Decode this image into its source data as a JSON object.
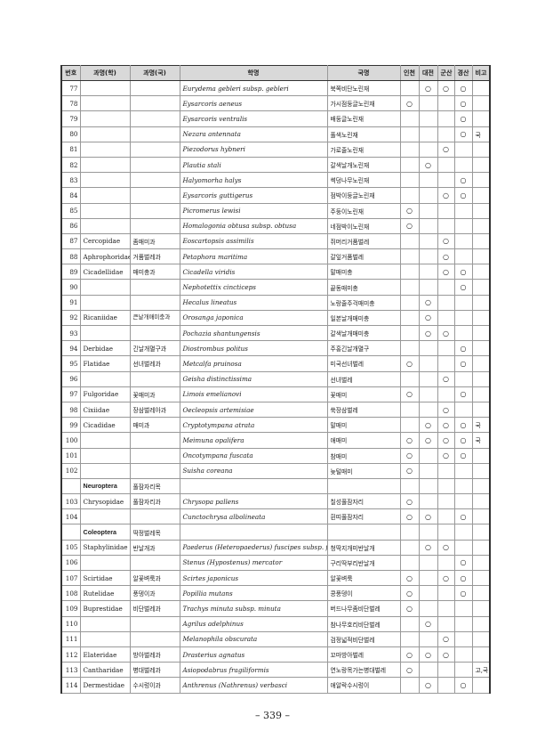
{
  "headers": [
    "번호",
    "과명(학)",
    "과명(국)",
    "학명",
    "국명",
    "인천",
    "대전",
    "군산",
    "경산",
    "비고"
  ],
  "rows": [
    {
      "no": "77",
      "fam": "",
      "famk": "",
      "sci": "Eurydema gebleri subsp. gebleri",
      "kor": "북쪽비단노린재",
      "m": [
        "",
        "○",
        "○",
        "○"
      ],
      "note": ""
    },
    {
      "no": "78",
      "fam": "",
      "famk": "",
      "sci": "Eysarcoris aeneus",
      "kor": "가시점둥글노린재",
      "m": [
        "○",
        "",
        "",
        "○"
      ],
      "note": ""
    },
    {
      "no": "79",
      "fam": "",
      "famk": "",
      "sci": "Eysarcoris ventralis",
      "kor": "배둥글노린재",
      "m": [
        "",
        "",
        "",
        "○"
      ],
      "note": ""
    },
    {
      "no": "80",
      "fam": "",
      "famk": "",
      "sci": "Nezara antennata",
      "kor": "풀색노린재",
      "m": [
        "",
        "",
        "",
        "○"
      ],
      "note": "국"
    },
    {
      "no": "81",
      "fam": "",
      "famk": "",
      "sci": "Piezodorus hybneri",
      "kor": "가로줄노린재",
      "m": [
        "",
        "",
        "○",
        ""
      ],
      "note": ""
    },
    {
      "no": "82",
      "fam": "",
      "famk": "",
      "sci": "Plautia stali",
      "kor": "갈색날개노린재",
      "m": [
        "",
        "○",
        "",
        ""
      ],
      "note": ""
    },
    {
      "no": "83",
      "fam": "",
      "famk": "",
      "sci": "Halyomorha halys",
      "kor": "썩덩나무노린재",
      "m": [
        "",
        "",
        "",
        "○"
      ],
      "note": ""
    },
    {
      "no": "84",
      "fam": "",
      "famk": "",
      "sci": "Eysarcoris guttigerus",
      "kor": "점박이둥글노린재",
      "m": [
        "",
        "",
        "○",
        "○"
      ],
      "note": ""
    },
    {
      "no": "85",
      "fam": "",
      "famk": "",
      "sci": "Picromerus lewisi",
      "kor": "주둥이노린재",
      "m": [
        "○",
        "",
        "",
        ""
      ],
      "note": ""
    },
    {
      "no": "86",
      "fam": "",
      "famk": "",
      "sci": "Homalogonia obtusa subsp. obtusa",
      "kor": "네점박이노린재",
      "m": [
        "○",
        "",
        "",
        ""
      ],
      "note": ""
    },
    {
      "no": "87",
      "fam": "Cercopidae",
      "famk": "좀매미과",
      "sci": "Eoscartopsis assimilis",
      "kor": "쥐머리거품벌레",
      "m": [
        "",
        "",
        "○",
        ""
      ],
      "note": ""
    },
    {
      "no": "88",
      "fam": "Aphrophoridae",
      "famk": "거품벌레과",
      "sci": "Petaphora maritima",
      "kor": "갈잎거품벌레",
      "m": [
        "",
        "",
        "○",
        ""
      ],
      "note": ""
    },
    {
      "no": "89",
      "fam": "Cicadellidae",
      "famk": "매미충과",
      "sci": "Cicadella viridis",
      "kor": "말매미충",
      "m": [
        "",
        "",
        "○",
        "○"
      ],
      "note": ""
    },
    {
      "no": "90",
      "fam": "",
      "famk": "",
      "sci": "Nephotettix cincticeps",
      "kor": "끝동매미충",
      "m": [
        "",
        "",
        "",
        "○"
      ],
      "note": ""
    },
    {
      "no": "91",
      "fam": "",
      "famk": "",
      "sci": "Hecalus lineatus",
      "kor": "노랑줄주걱매미충",
      "m": [
        "",
        "○",
        "",
        ""
      ],
      "note": ""
    },
    {
      "no": "92",
      "fam": "Ricaniidae",
      "famk": "큰날개매미충과",
      "sci": "Orosanga japonica",
      "kor": "일본날개매미충",
      "m": [
        "",
        "○",
        "",
        ""
      ],
      "note": ""
    },
    {
      "no": "93",
      "fam": "",
      "famk": "",
      "sci": "Pochazia shantungensis",
      "kor": "갈색날개매미충",
      "m": [
        "",
        "○",
        "○",
        ""
      ],
      "note": ""
    },
    {
      "no": "94",
      "fam": "Derbidae",
      "famk": "긴날개멸구과",
      "sci": "Diostrombus politus",
      "kor": "주홍긴날개멸구",
      "m": [
        "",
        "",
        "",
        "○"
      ],
      "note": ""
    },
    {
      "no": "95",
      "fam": "Flatidae",
      "famk": "선녀벌레과",
      "sci": "Metcalfa pruinosa",
      "kor": "미국선녀벌레",
      "m": [
        "○",
        "",
        "",
        "○"
      ],
      "note": ""
    },
    {
      "no": "96",
      "fam": "",
      "famk": "",
      "sci": "Geisha distinctissima",
      "kor": "선녀벌레",
      "m": [
        "",
        "",
        "○",
        ""
      ],
      "note": ""
    },
    {
      "no": "97",
      "fam": "Fulgoridae",
      "famk": "꽃매미과",
      "sci": "Limois emelianovi",
      "kor": "꽃매미",
      "m": [
        "○",
        "",
        "",
        "○"
      ],
      "note": ""
    },
    {
      "no": "98",
      "fam": "Cixiidae",
      "famk": "장삼벌레아과",
      "sci": "Oecleopsis artemisiae",
      "kor": "쑥장삼벌레",
      "m": [
        "",
        "",
        "○",
        ""
      ],
      "note": ""
    },
    {
      "no": "99",
      "fam": "Cicadidae",
      "famk": "매미과",
      "sci": "Cryptotympana atrata",
      "kor": "말매미",
      "m": [
        "",
        "○",
        "○",
        "○"
      ],
      "note": "국"
    },
    {
      "no": "100",
      "fam": "",
      "famk": "",
      "sci": "Meimuna opalifera",
      "kor": "애매미",
      "m": [
        "○",
        "○",
        "○",
        "○"
      ],
      "note": "국"
    },
    {
      "no": "101",
      "fam": "",
      "famk": "",
      "sci": "Oncotympana fuscata",
      "kor": "참매미",
      "m": [
        "○",
        "",
        "○",
        "○"
      ],
      "note": ""
    },
    {
      "no": "102",
      "fam": "",
      "famk": "",
      "sci": "Suisha coreana",
      "kor": "늦털매미",
      "m": [
        "○",
        "",
        "",
        ""
      ],
      "note": ""
    },
    {
      "order": true,
      "no": "",
      "fam": "Neuroptera",
      "famk": "풀잠자리목",
      "sci": "",
      "kor": "",
      "m": [
        "",
        "",
        "",
        ""
      ],
      "note": ""
    },
    {
      "no": "103",
      "fam": "Chrysopidae",
      "famk": "풀잠자리과",
      "sci": "Chrysopa pallens",
      "kor": "칠성풀잠자리",
      "m": [
        "○",
        "",
        "",
        ""
      ],
      "note": ""
    },
    {
      "no": "104",
      "fam": "",
      "famk": "",
      "sci": "Cunctochrysa albolineata",
      "kor": "흰띠풀잠자리",
      "m": [
        "○",
        "○",
        "",
        "○"
      ],
      "note": ""
    },
    {
      "order": true,
      "no": "",
      "fam": "Coleoptera",
      "famk": "딱정벌레목",
      "sci": "",
      "kor": "",
      "m": [
        "",
        "",
        "",
        ""
      ],
      "note": ""
    },
    {
      "no": "105",
      "fam": "Staphylinidae",
      "famk": "반날개과",
      "sci": "Paederus (Heteropaederus) fuscipes subsp. fuscipes",
      "kor": "청딱지개미반날개",
      "m": [
        "",
        "○",
        "○",
        ""
      ],
      "note": ""
    },
    {
      "no": "106",
      "fam": "",
      "famk": "",
      "sci": "Stenus (Hypostenus) mercator",
      "kor": "구리딱부리반날개",
      "m": [
        "",
        "",
        "",
        "○"
      ],
      "note": ""
    },
    {
      "no": "107",
      "fam": "Scirtidae",
      "famk": "알꽃벼룩과",
      "sci": "Scirtes japonicus",
      "kor": "알꽃벼룩",
      "m": [
        "○",
        "",
        "○",
        "○"
      ],
      "note": ""
    },
    {
      "no": "108",
      "fam": "Rutelidae",
      "famk": "풍뎅이과",
      "sci": "Popillia mutans",
      "kor": "콩풍뎅이",
      "m": [
        "○",
        "",
        "",
        "○"
      ],
      "note": ""
    },
    {
      "no": "109",
      "fam": "Buprestidae",
      "famk": "비단벌레과",
      "sci": "Trachys minuta subsp. minuta",
      "kor": "버드나무좀비단벌레",
      "m": [
        "○",
        "",
        "",
        ""
      ],
      "note": ""
    },
    {
      "no": "110",
      "fam": "",
      "famk": "",
      "sci": "Agrilus adelphinus",
      "kor": "참나무호리비단벌레",
      "m": [
        "",
        "○",
        "",
        ""
      ],
      "note": ""
    },
    {
      "no": "111",
      "fam": "",
      "famk": "",
      "sci": "Melanophila obscurata",
      "kor": "검정넓적비단벌레",
      "m": [
        "",
        "",
        "○",
        ""
      ],
      "note": ""
    },
    {
      "no": "112",
      "fam": "Elateridae",
      "famk": "방아벌레과",
      "sci": "Drasterius agnatus",
      "kor": "꼬마방아벌레",
      "m": [
        "○",
        "○",
        "○",
        ""
      ],
      "note": ""
    },
    {
      "no": "113",
      "fam": "Cantharidae",
      "famk": "병대벌레과",
      "sci": "Asiopodabrus fragiliformis",
      "kor": "연노랑목가는병대벌레",
      "m": [
        "○",
        "",
        "",
        ""
      ],
      "note": "고,국"
    },
    {
      "no": "114",
      "fam": "Dermestidae",
      "famk": "수시렁이과",
      "sci": "Anthrenus (Nathrenus) verbasci",
      "kor": "애알락수시렁이",
      "m": [
        "",
        "○",
        "",
        "○"
      ],
      "note": ""
    }
  ],
  "page_number": "– 339 –"
}
